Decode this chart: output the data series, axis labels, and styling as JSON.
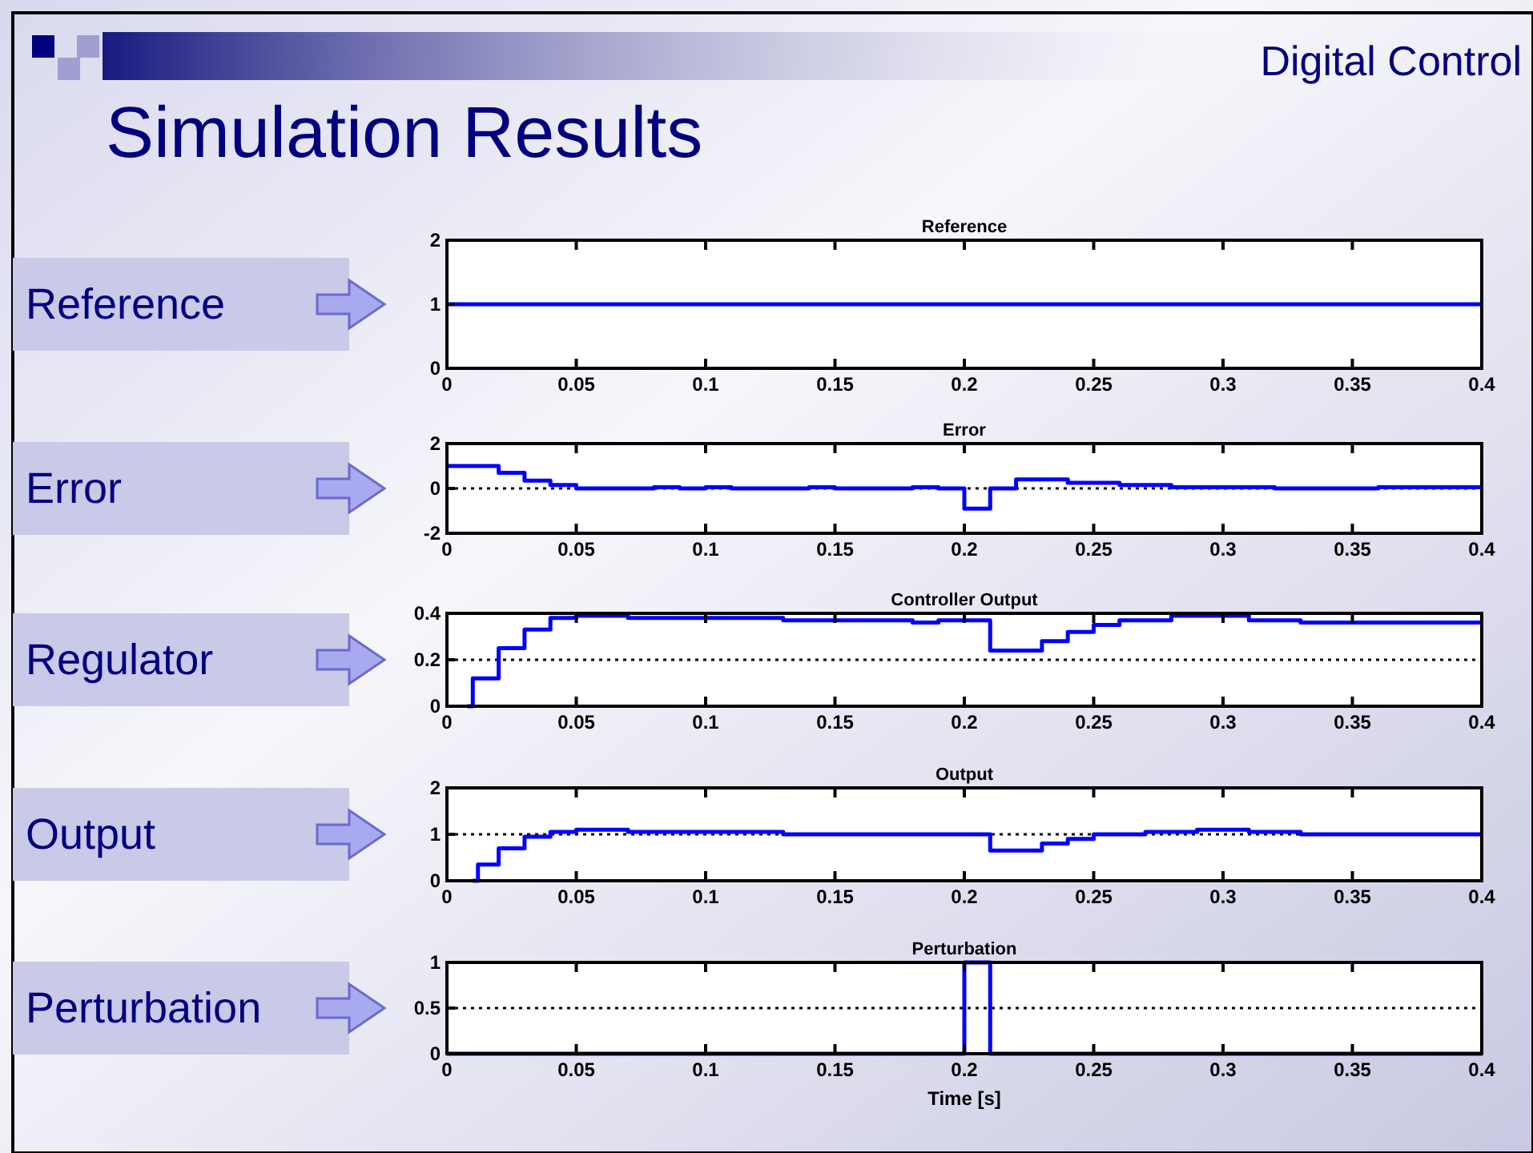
{
  "chart_data": [
    {
      "type": "step",
      "title": "Reference",
      "annotations": [
        "Reference",
        "Simulation Results",
        "Digital Control"
      ],
      "xlim": [
        0,
        0.4
      ],
      "xticks": [
        0,
        0.05,
        0.1,
        0.15,
        0.2,
        0.25,
        0.3,
        0.35,
        0.4
      ],
      "ylim": [
        0,
        2
      ],
      "yticks": [
        0,
        1,
        2
      ],
      "grid": false,
      "series": [
        {
          "color": "#0000ff",
          "x": [
            0,
            0.4
          ],
          "values": [
            1,
            1
          ]
        }
      ]
    },
    {
      "type": "step",
      "title": "Error",
      "annotations": [
        "Error"
      ],
      "xlim": [
        0,
        0.4
      ],
      "xticks": [
        0,
        0.05,
        0.1,
        0.15,
        0.2,
        0.25,
        0.3,
        0.35,
        0.4
      ],
      "ylim": [
        -2,
        2
      ],
      "yticks": [
        -2,
        0,
        2
      ],
      "grid": false,
      "ref_lines": [
        {
          "axis": "y",
          "value": 0,
          "line_style": "dotted",
          "color": "#000000"
        }
      ],
      "series": [
        {
          "color": "#0000ff",
          "x": [
            0,
            0.02,
            0.03,
            0.04,
            0.05,
            0.08,
            0.09,
            0.1,
            0.11,
            0.14,
            0.15,
            0.18,
            0.19,
            0.2,
            0.21,
            0.22,
            0.24,
            0.26,
            0.28,
            0.31,
            0.32,
            0.36,
            0.4
          ],
          "values": [
            1,
            0.7,
            0.35,
            0.15,
            0,
            0.05,
            0,
            0.05,
            0,
            0.05,
            0,
            0.05,
            0,
            -0.9,
            0,
            0.4,
            0.25,
            0.15,
            0.05,
            0.05,
            0,
            0.05,
            0.05
          ]
        }
      ]
    },
    {
      "type": "step",
      "title": "Controller Output",
      "annotations": [
        "Regulator"
      ],
      "xlim": [
        0,
        0.4
      ],
      "xticks": [
        0,
        0.05,
        0.1,
        0.15,
        0.2,
        0.25,
        0.3,
        0.35,
        0.4
      ],
      "ylim": [
        0,
        0.4
      ],
      "yticks": [
        0,
        0.2,
        0.4
      ],
      "grid": false,
      "ref_lines": [
        {
          "axis": "y",
          "value": 0.2,
          "line_style": "dotted",
          "color": "#000000"
        }
      ],
      "series": [
        {
          "color": "#0000ff",
          "x": [
            0.008,
            0.01,
            0.02,
            0.03,
            0.04,
            0.05,
            0.07,
            0.13,
            0.18,
            0.19,
            0.21,
            0.23,
            0.24,
            0.25,
            0.26,
            0.28,
            0.31,
            0.33,
            0.4
          ],
          "values": [
            0,
            0.12,
            0.25,
            0.33,
            0.38,
            0.39,
            0.38,
            0.37,
            0.36,
            0.37,
            0.24,
            0.28,
            0.32,
            0.35,
            0.37,
            0.39,
            0.37,
            0.36,
            0.36
          ]
        }
      ]
    },
    {
      "type": "step",
      "title": "Output",
      "annotations": [
        "Output"
      ],
      "xlim": [
        0,
        0.4
      ],
      "xticks": [
        0,
        0.05,
        0.1,
        0.15,
        0.2,
        0.25,
        0.3,
        0.35,
        0.4
      ],
      "ylim": [
        0,
        2
      ],
      "yticks": [
        0,
        1,
        2
      ],
      "grid": false,
      "ref_lines": [
        {
          "axis": "y",
          "value": 1,
          "line_style": "dotted",
          "color": "#000000"
        }
      ],
      "series": [
        {
          "color": "#0000ff",
          "x": [
            0.01,
            0.012,
            0.02,
            0.03,
            0.04,
            0.05,
            0.07,
            0.1,
            0.13,
            0.21,
            0.23,
            0.24,
            0.25,
            0.27,
            0.29,
            0.31,
            0.33,
            0.4
          ],
          "values": [
            0,
            0.35,
            0.7,
            0.95,
            1.05,
            1.1,
            1.05,
            1.05,
            1,
            0.65,
            0.8,
            0.9,
            1,
            1.05,
            1.1,
            1.05,
            1,
            1
          ]
        }
      ]
    },
    {
      "type": "step",
      "title": "Perturbation",
      "xlabel": "Time [s]",
      "annotations": [
        "Perturbation"
      ],
      "xlim": [
        0,
        0.4
      ],
      "xticks": [
        0,
        0.05,
        0.1,
        0.15,
        0.2,
        0.25,
        0.3,
        0.35,
        0.4
      ],
      "ylim": [
        0,
        1
      ],
      "yticks": [
        0,
        0.5,
        1
      ],
      "grid": false,
      "ref_lines": [
        {
          "axis": "y",
          "value": 0.5,
          "line_style": "dotted",
          "color": "#000000"
        }
      ],
      "series": [
        {
          "color": "#0000ff",
          "x": [
            0,
            0.2,
            0.21,
            0.4
          ],
          "values": [
            0,
            1,
            0,
            0
          ]
        }
      ]
    }
  ]
}
